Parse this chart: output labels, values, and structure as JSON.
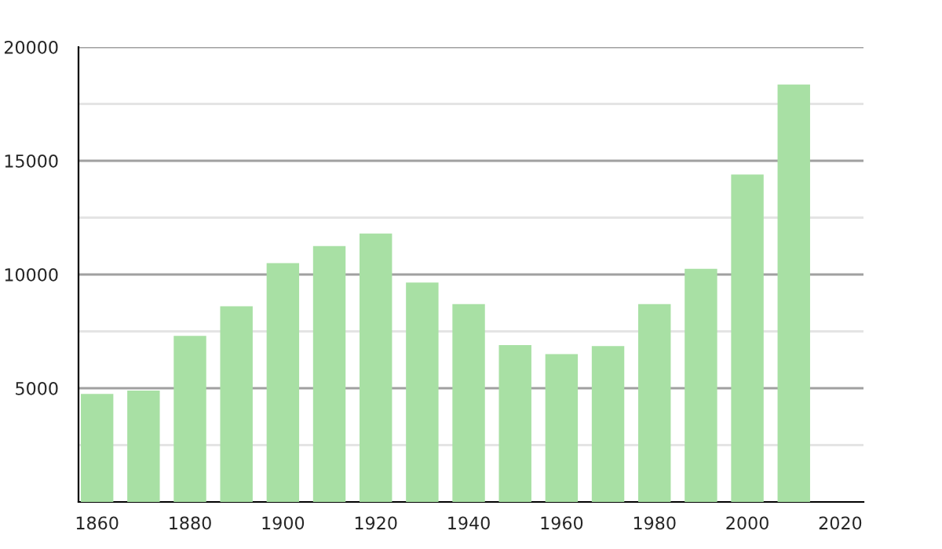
{
  "chart_data": {
    "type": "bar",
    "x": [
      1860,
      1870,
      1880,
      1890,
      1900,
      1910,
      1920,
      1930,
      1940,
      1950,
      1960,
      1970,
      1980,
      1990,
      2000,
      2010
    ],
    "values": [
      4750,
      4900,
      7300,
      8600,
      10500,
      11250,
      11800,
      9650,
      8700,
      6900,
      6500,
      6850,
      8700,
      10250,
      14400,
      18350
    ],
    "color": "#a8e0a4",
    "xlim": [
      1856,
      2025
    ],
    "xticks": [
      1860,
      1880,
      1900,
      1920,
      1940,
      1960,
      1980,
      2000,
      2020
    ],
    "ylim": [
      0,
      20000
    ],
    "yticks": [
      {
        "value": 2500,
        "label": null
      },
      5000,
      {
        "value": 7500,
        "label": null
      },
      10000,
      {
        "value": 12500,
        "label": null
      },
      15000,
      {
        "value": 17500,
        "label": null
      },
      20000
    ],
    "grid": "y"
  }
}
